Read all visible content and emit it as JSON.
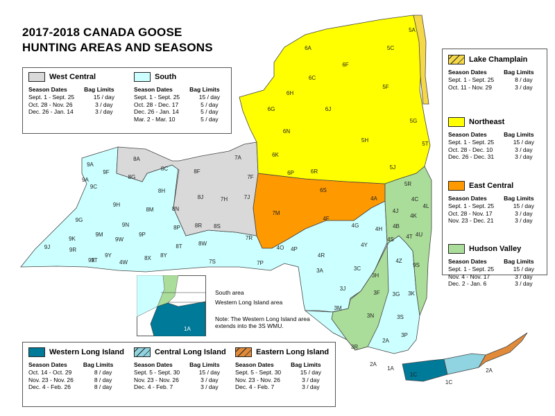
{
  "title_line1": "2017-2018 CANADA GOOSE",
  "title_line2": "HUNTING AREAS AND SEASONS",
  "colors": {
    "west_central": "#d9d9d9",
    "south": "#ccffff",
    "northeast": "#ffff00",
    "east_central": "#ff9900",
    "hudson_valley": "#aadd99",
    "western_long_island": "#007a99",
    "central_long_island": "#8fd4e0",
    "eastern_long_island": "#e08a3a",
    "lake_champlain": "#f5d84a"
  },
  "table_headers": {
    "dates": "Season Dates",
    "bag": "Bag Limits"
  },
  "zones": {
    "west_central": {
      "name": "West Central",
      "seasons": [
        {
          "dates": "Sept. 1 - Sept. 25",
          "bag": "15 / day"
        },
        {
          "dates": "Oct. 28 - Nov. 26",
          "bag": "3 / day"
        },
        {
          "dates": "Dec. 26 - Jan. 14",
          "bag": "3 / day"
        }
      ]
    },
    "south": {
      "name": "South",
      "seasons": [
        {
          "dates": "Sept. 1 - Sept. 25",
          "bag": "15 / day"
        },
        {
          "dates": "Oct. 28 - Dec. 17",
          "bag": "5 / day"
        },
        {
          "dates": "Dec. 26 - Jan. 14",
          "bag": "5 / day"
        },
        {
          "dates": "Mar. 2 - Mar. 10",
          "bag": "5 / day"
        }
      ]
    },
    "lake_champlain": {
      "name": "Lake Champlain",
      "seasons": [
        {
          "dates": "Sept. 1 - Sept. 25",
          "bag": "8 / day"
        },
        {
          "dates": "Oct. 11 - Nov. 29",
          "bag": "3 / day"
        }
      ]
    },
    "northeast": {
      "name": "Northeast",
      "seasons": [
        {
          "dates": "Sept. 1 - Sept. 25",
          "bag": "15 / day"
        },
        {
          "dates": "Oct. 28 - Dec. 10",
          "bag": "3 / day"
        },
        {
          "dates": "Dec. 26 - Dec. 31",
          "bag": "3 / day"
        }
      ]
    },
    "east_central": {
      "name": "East Central",
      "seasons": [
        {
          "dates": "Sept. 1 - Sept. 25",
          "bag": "15 / day"
        },
        {
          "dates": "Oct. 28 - Nov. 17",
          "bag": "3 / day"
        },
        {
          "dates": "Nov. 23 - Dec. 21",
          "bag": "3 / day"
        }
      ]
    },
    "hudson_valley": {
      "name": "Hudson Valley",
      "seasons": [
        {
          "dates": "Sept. 1 - Sept. 25",
          "bag": "15 / day"
        },
        {
          "dates": "Nov. 4 - Nov. 17",
          "bag": "3 / day"
        },
        {
          "dates": "Dec. 2 - Jan. 6",
          "bag": "3 / day"
        }
      ]
    },
    "western_long_island": {
      "name": "Western Long Island",
      "seasons": [
        {
          "dates": "Oct. 14 - Oct. 29",
          "bag": "8 / day"
        },
        {
          "dates": "Nov. 23 - Nov. 26",
          "bag": "8 / day"
        },
        {
          "dates": "Dec. 4 - Feb. 26",
          "bag": "8 / day"
        }
      ]
    },
    "central_long_island": {
      "name": "Central Long Island",
      "seasons": [
        {
          "dates": "Sept. 5 - Sept. 30",
          "bag": "15 / day"
        },
        {
          "dates": "Nov. 23 - Nov. 26",
          "bag": "3 / day"
        },
        {
          "dates": "Dec. 4 - Feb. 7",
          "bag": "3 / day"
        }
      ]
    },
    "eastern_long_island": {
      "name": "Eastern Long Island",
      "seasons": [
        {
          "dates": "Sept. 5 - Sept. 30",
          "bag": "15 / day"
        },
        {
          "dates": "Nov. 23 - Nov. 26",
          "bag": "3 / day"
        },
        {
          "dates": "Dec. 4 - Feb. 7",
          "bag": "3 / day"
        }
      ]
    }
  },
  "inset": {
    "south_area": "South area",
    "western_li_area": "Western Long Island area",
    "note": "Note: The Western Long Island area extends into the 3S WMU.",
    "unit_label": "1A"
  },
  "wmu_labels": [
    "5A",
    "6A",
    "5C",
    "6F",
    "6C",
    "5F",
    "6H",
    "6G",
    "6J",
    "5G",
    "6N",
    "5H",
    "6K",
    "5T",
    "5J",
    "9A",
    "9F",
    "8A",
    "8C",
    "7A",
    "8G",
    "8F",
    "7F",
    "6P",
    "6R",
    "5R",
    "9A",
    "9C",
    "8H",
    "8J",
    "7H",
    "7J",
    "6S",
    "4A",
    "4C",
    "9H",
    "8M",
    "8N",
    "7M",
    "4F",
    "4J",
    "4L",
    "4K",
    "4G",
    "4H",
    "4B",
    "9G",
    "8R",
    "8S",
    "9N",
    "8P",
    "9K",
    "9M",
    "9W",
    "9P",
    "4S",
    "4T",
    "4U",
    "7R",
    "8T",
    "8W",
    "9J",
    "9R",
    "9T",
    "9Y",
    "8X",
    "8Y",
    "7S",
    "7P",
    "4O",
    "4P",
    "4R",
    "4Y",
    "4Z",
    "9S",
    "9X",
    "4W",
    "3A",
    "3C",
    "3H",
    "3J",
    "3F",
    "3G",
    "3K",
    "3M",
    "3N",
    "3S",
    "3P",
    "3R",
    "2A",
    "2A",
    "1A",
    "1C",
    "1C",
    "2A"
  ]
}
